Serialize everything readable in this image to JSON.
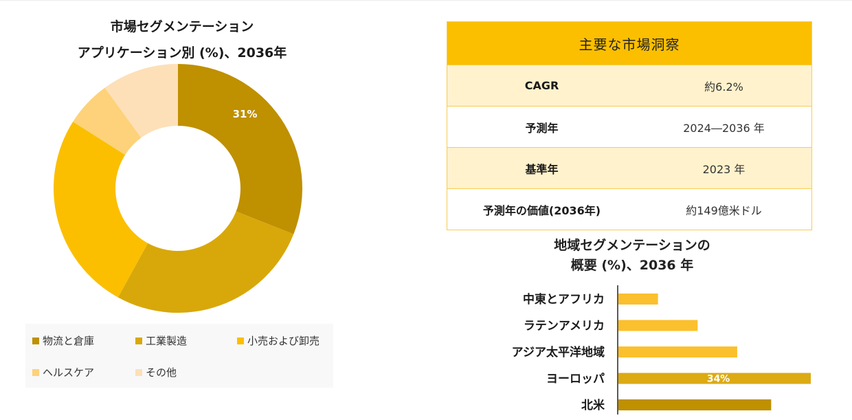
{
  "pie": {
    "title_line1": "市場セグメンテーション",
    "title_line2": "アプリケーション別 (%)、2036年"
  },
  "table": {
    "header": "主要な市場洞察",
    "rows": [
      {
        "label": "CAGR",
        "value": "約6.2%"
      },
      {
        "label": "予測年",
        "value": "2024―2036 年"
      },
      {
        "label": "基準年",
        "value": "2023 年"
      },
      {
        "label": "予測年の価値(2036年)",
        "value": "約149億米ドル"
      }
    ]
  },
  "bar": {
    "title_line1": "地域セグメンテーションの",
    "title_line2": "概要 (%)、2036 年"
  },
  "chart_data": [
    {
      "type": "pie",
      "donut": true,
      "categories": [
        "物流と倉庫",
        "工業製造",
        "小売および卸売",
        "ヘルスケア",
        "その他"
      ],
      "values": [
        31,
        27,
        26,
        6,
        10
      ],
      "colors": [
        "#bf9000",
        "#d8a80a",
        "#fbbf00",
        "#fdd27a",
        "#fde0b8"
      ],
      "data_labels": [
        "31%",
        "",
        "",
        "",
        ""
      ],
      "legend_position": "bottom"
    },
    {
      "type": "bar",
      "orientation": "horizontal",
      "categories": [
        "中東とアフリカ",
        "ラテンアメリカ",
        "アジア太平洋地域",
        "ヨーロッパ",
        "北米"
      ],
      "values": [
        7,
        14,
        21,
        34,
        27
      ],
      "colors": [
        "#fbc02d",
        "#fbc02d",
        "#fbc02d",
        "#dcaa12",
        "#bf9000"
      ],
      "data_labels": [
        "",
        "",
        "",
        "34%",
        ""
      ],
      "xlim": [
        0,
        34
      ],
      "grid": false
    }
  ]
}
